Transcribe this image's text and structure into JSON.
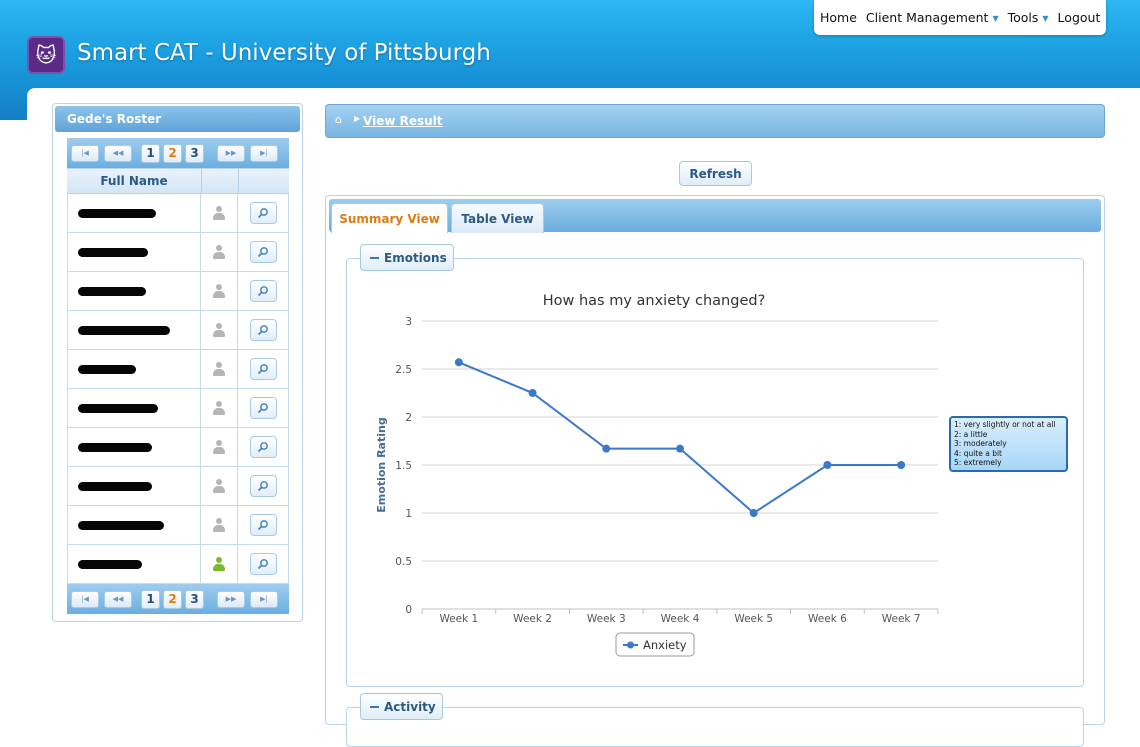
{
  "app": {
    "title": "Smart CAT - University of Pittsburgh"
  },
  "topnav": {
    "items": [
      {
        "label": "Home",
        "dropdown": false
      },
      {
        "label": "Client Management",
        "dropdown": true
      },
      {
        "label": "Tools",
        "dropdown": true
      },
      {
        "label": "Logout",
        "dropdown": false
      }
    ]
  },
  "roster": {
    "title": "Gede's Roster",
    "column_header": "Full Name",
    "pages": [
      "1",
      "2",
      "3"
    ],
    "current_page": "2",
    "pager_buttons": {
      "first": "|◀",
      "prev": "◀◀",
      "next": "▶▶",
      "last": "▶|"
    },
    "rows": [
      {
        "name": "",
        "redacted": true,
        "status": "inactive"
      },
      {
        "name": "",
        "redacted": true,
        "status": "inactive"
      },
      {
        "name": "",
        "redacted": true,
        "status": "inactive"
      },
      {
        "name": "",
        "redacted": true,
        "status": "inactive"
      },
      {
        "name": "",
        "redacted": true,
        "status": "inactive"
      },
      {
        "name": "",
        "redacted": true,
        "status": "inactive"
      },
      {
        "name": "",
        "redacted": true,
        "status": "inactive"
      },
      {
        "name": "",
        "redacted": true,
        "status": "inactive"
      },
      {
        "name": "",
        "redacted": true,
        "status": "inactive"
      },
      {
        "name": "",
        "redacted": true,
        "status": "active"
      }
    ],
    "icons": {
      "person": "person-icon",
      "view": "magnifier-icon"
    }
  },
  "breadcrumb": {
    "link": "View Result"
  },
  "refresh_label": "Refresh",
  "tabs": [
    {
      "label": "Summary View",
      "active": true
    },
    {
      "label": "Table View",
      "active": false
    }
  ],
  "sections": {
    "emotions": "Emotions",
    "activity": "Activity"
  },
  "scale_legend": [
    "1: very slightly or not at all",
    "2: a little",
    "3: moderately",
    "4: quite a bit",
    "5: extremely"
  ],
  "colors": {
    "accent": "#1a9ee0",
    "active_tab": "#e07a12",
    "series": "#3a78c9",
    "active_status": "#7ab92e"
  },
  "chart_data": {
    "type": "line",
    "title": "How has my anxiety changed?",
    "xlabel": "",
    "ylabel": "Emotion Rating",
    "categories": [
      "Week 1",
      "Week 2",
      "Week 3",
      "Week 4",
      "Week 5",
      "Week 6",
      "Week 7"
    ],
    "series": [
      {
        "name": "Anxiety",
        "values": [
          2.57,
          2.25,
          1.67,
          1.67,
          1.0,
          1.5,
          1.5
        ]
      }
    ],
    "ylim": [
      0,
      3
    ],
    "yticks": [
      "0",
      "0.5",
      "1",
      "1.5",
      "2",
      "2.5",
      "3"
    ],
    "grid": true,
    "legend": "bottom"
  }
}
